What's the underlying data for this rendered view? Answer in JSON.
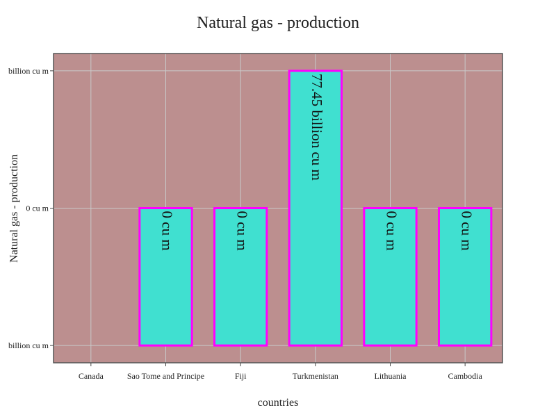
{
  "chart_data": {
    "type": "bar",
    "title": "Natural gas - production",
    "xlabel": "countries",
    "ylabel": "Natural gas - production",
    "categories": [
      "Canada",
      "Sao Tome and Principe",
      "Fiji",
      "Turkmenistan",
      "Lithuania",
      "Cambodia"
    ],
    "values": [
      null,
      0,
      0,
      77.45,
      0,
      0
    ],
    "bar_labels": [
      "",
      "0 cu m",
      "0 cu m",
      "77.45 billion cu m",
      "0 cu m",
      "0 cu m"
    ],
    "y_ticks": [
      {
        "value": 77.45,
        "label": "billion cu m"
      },
      {
        "value": 0,
        "label": "0 cu m"
      },
      {
        "value": -77.45,
        "label": "billion cu m"
      }
    ],
    "ylim": [
      -87.2,
      87.2
    ],
    "grid": true,
    "colors": {
      "plot_background": "#bc8f8f",
      "bar_fill": "#40e0d0",
      "bar_stroke": "#ff00ff",
      "grid": "#c9c9c9",
      "frame": "#555555"
    }
  }
}
